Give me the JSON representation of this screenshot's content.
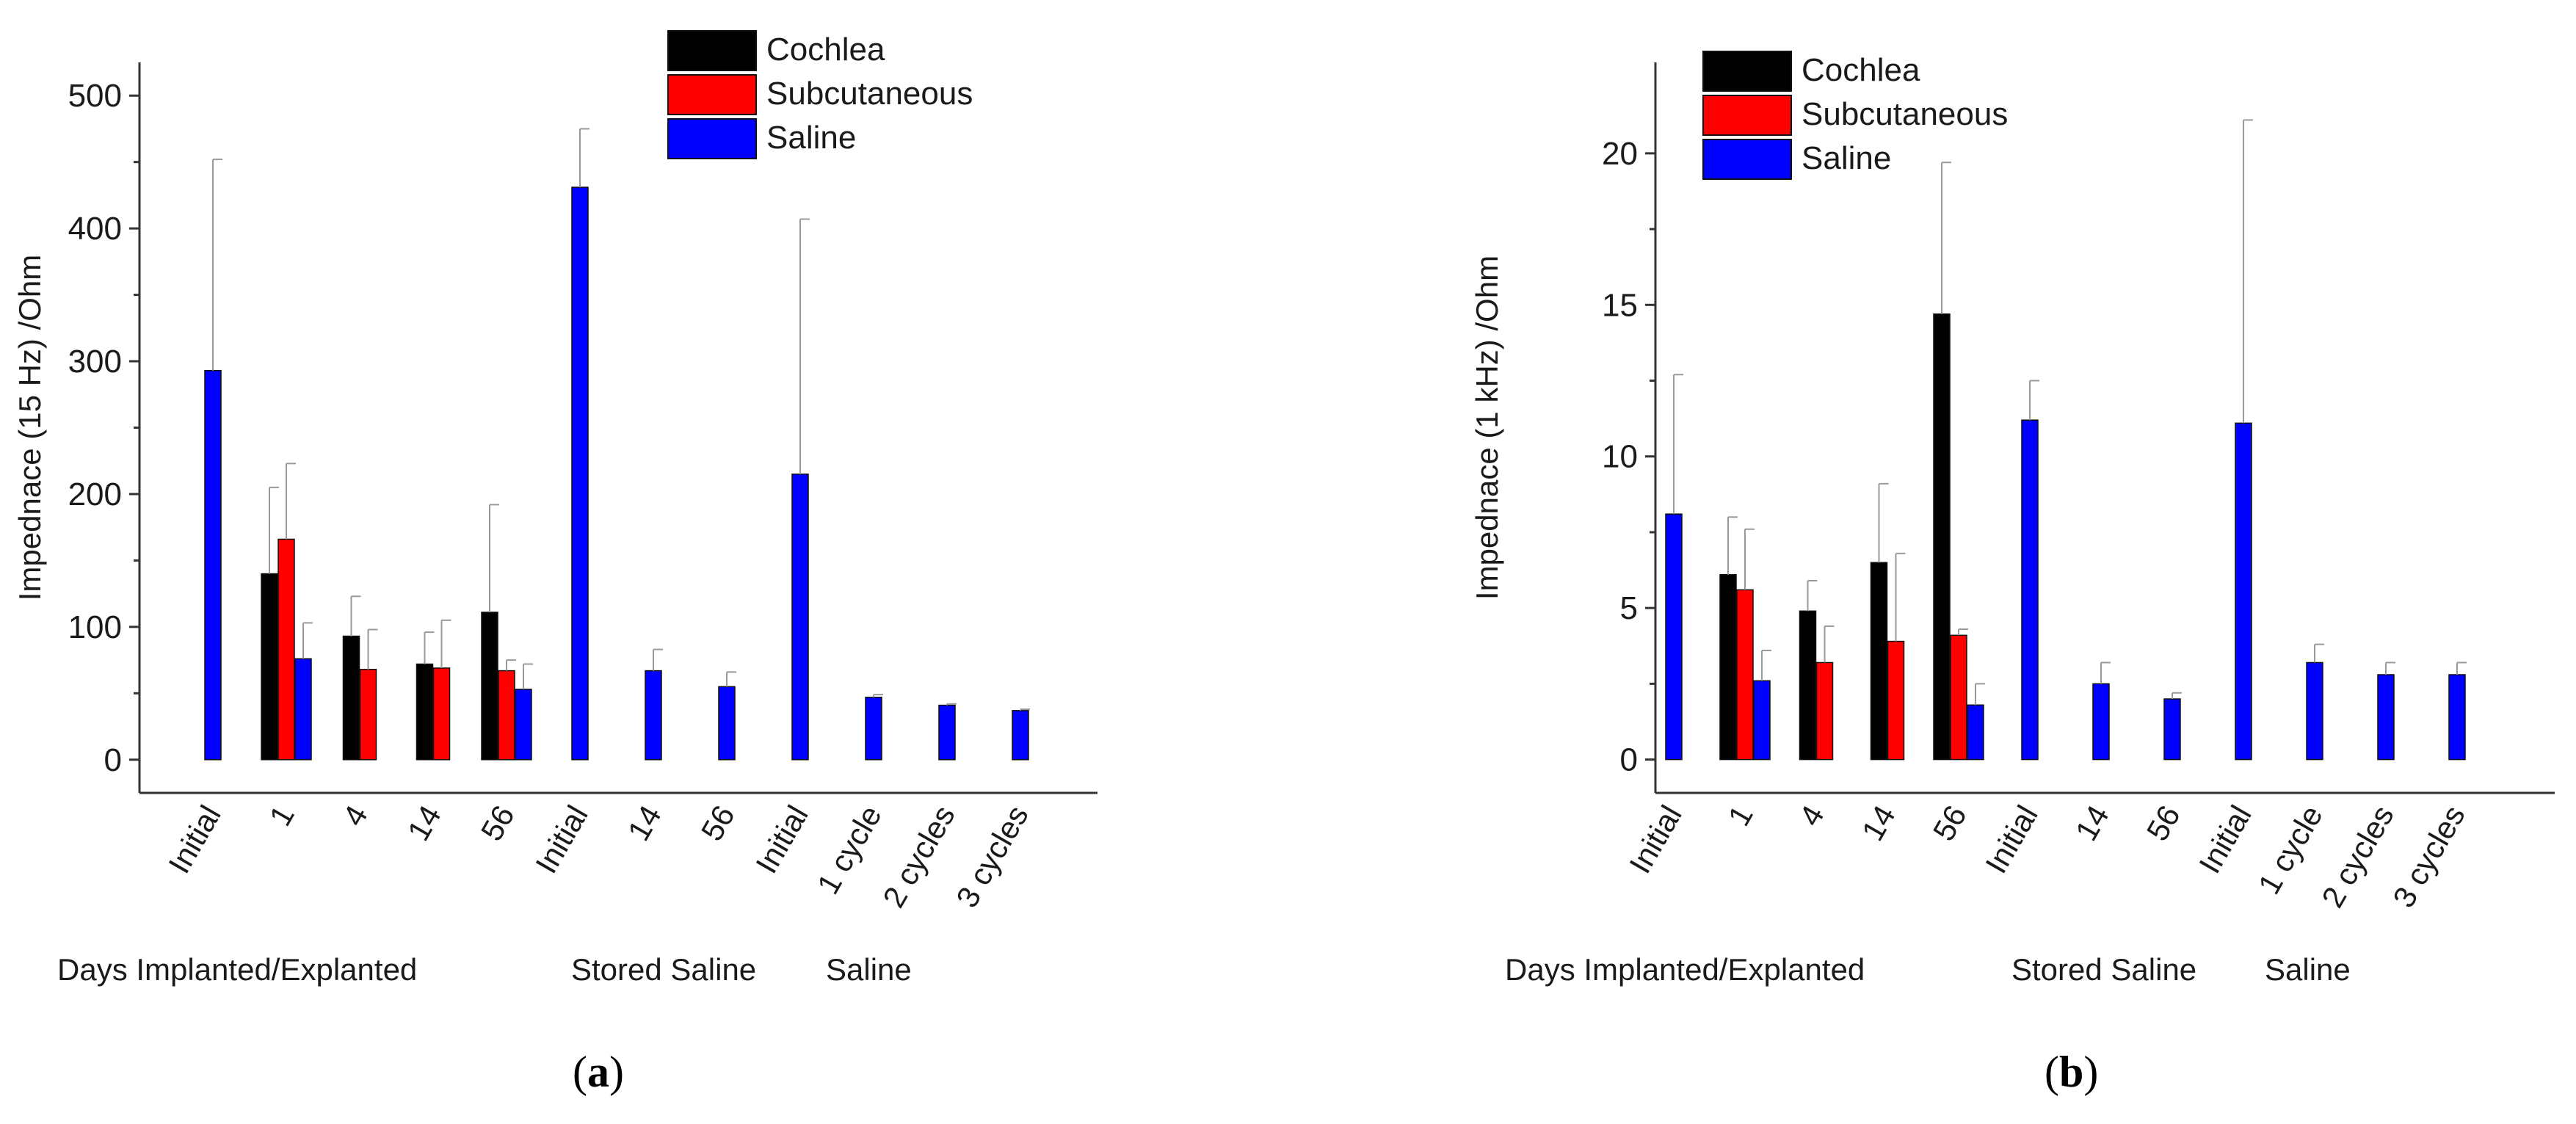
{
  "colors": {
    "Cochlea": "#000000",
    "Subcutaneous": "#ff0000",
    "Saline": "#0000ff",
    "axis": "#333333",
    "error": "#9a9a9a"
  },
  "chart_data": [
    {
      "id": "a",
      "type": "bar",
      "caption_prefix": "(",
      "caption_letter": "a",
      "caption_suffix": ")",
      "ylabel": "Impednace (15 Hz) /Ohm",
      "ylim": [
        -25,
        525
      ],
      "yticks": [
        0,
        100,
        200,
        300,
        400,
        500
      ],
      "legend": [
        "Cochlea",
        "Subcutaneous",
        "Saline"
      ],
      "categories": [
        "Initial",
        "1",
        "4",
        "14",
        "56",
        "Initial",
        "14",
        "56",
        "Initial",
        "1 cycle",
        "2 cycles",
        "3 cycles"
      ],
      "group_labels": [
        "Days Implanted/Explanted",
        "Stored Saline",
        "Saline"
      ],
      "series": [
        {
          "name": "Cochlea",
          "values": [
            null,
            140,
            93,
            72,
            111,
            null,
            null,
            null,
            null,
            null,
            null,
            null
          ],
          "errors": [
            null,
            65,
            30,
            24,
            81,
            null,
            null,
            null,
            null,
            null,
            null,
            null
          ]
        },
        {
          "name": "Subcutaneous",
          "values": [
            null,
            166,
            68,
            69,
            67,
            null,
            null,
            null,
            null,
            null,
            null,
            null
          ],
          "errors": [
            null,
            57,
            30,
            36,
            8,
            null,
            null,
            null,
            null,
            null,
            null,
            null
          ]
        },
        {
          "name": "Saline",
          "values": [
            293,
            76,
            null,
            null,
            53,
            431,
            67,
            55,
            215,
            47,
            41,
            37
          ],
          "errors": [
            159,
            27,
            null,
            null,
            19,
            44,
            16,
            11,
            192,
            2,
            1,
            1
          ]
        }
      ]
    },
    {
      "id": "b",
      "type": "bar",
      "caption_prefix": "(",
      "caption_letter": "b",
      "caption_suffix": ")",
      "ylabel": "Impednace (1 kHz) /Ohm",
      "ylim": [
        -1.1,
        23
      ],
      "yticks": [
        0,
        5,
        10,
        15,
        20
      ],
      "legend": [
        "Cochlea",
        "Subcutaneous",
        "Saline"
      ],
      "categories": [
        "Initial",
        "1",
        "4",
        "14",
        "56",
        "Initial",
        "14",
        "56",
        "Initial",
        "1 cycle",
        "2 cycles",
        "3 cycles"
      ],
      "group_labels": [
        "Days Implanted/Explanted",
        "Stored Saline",
        "Saline"
      ],
      "series": [
        {
          "name": "Cochlea",
          "values": [
            null,
            6.1,
            4.9,
            6.5,
            14.7,
            null,
            null,
            null,
            null,
            null,
            null,
            null
          ],
          "errors": [
            null,
            1.9,
            1.0,
            2.6,
            5.0,
            null,
            null,
            null,
            null,
            null,
            null,
            null
          ]
        },
        {
          "name": "Subcutaneous",
          "values": [
            null,
            5.6,
            3.2,
            3.9,
            4.1,
            null,
            null,
            null,
            null,
            null,
            null,
            null
          ],
          "errors": [
            null,
            2.0,
            1.2,
            2.9,
            0.2,
            null,
            null,
            null,
            null,
            null,
            null,
            null
          ]
        },
        {
          "name": "Saline",
          "values": [
            8.1,
            2.6,
            null,
            null,
            1.8,
            11.2,
            2.5,
            2.0,
            11.1,
            3.2,
            2.8,
            2.8
          ],
          "errors": [
            4.6,
            1.0,
            null,
            null,
            0.7,
            1.3,
            0.7,
            0.2,
            10.0,
            0.6,
            0.4,
            0.4
          ]
        }
      ]
    }
  ]
}
